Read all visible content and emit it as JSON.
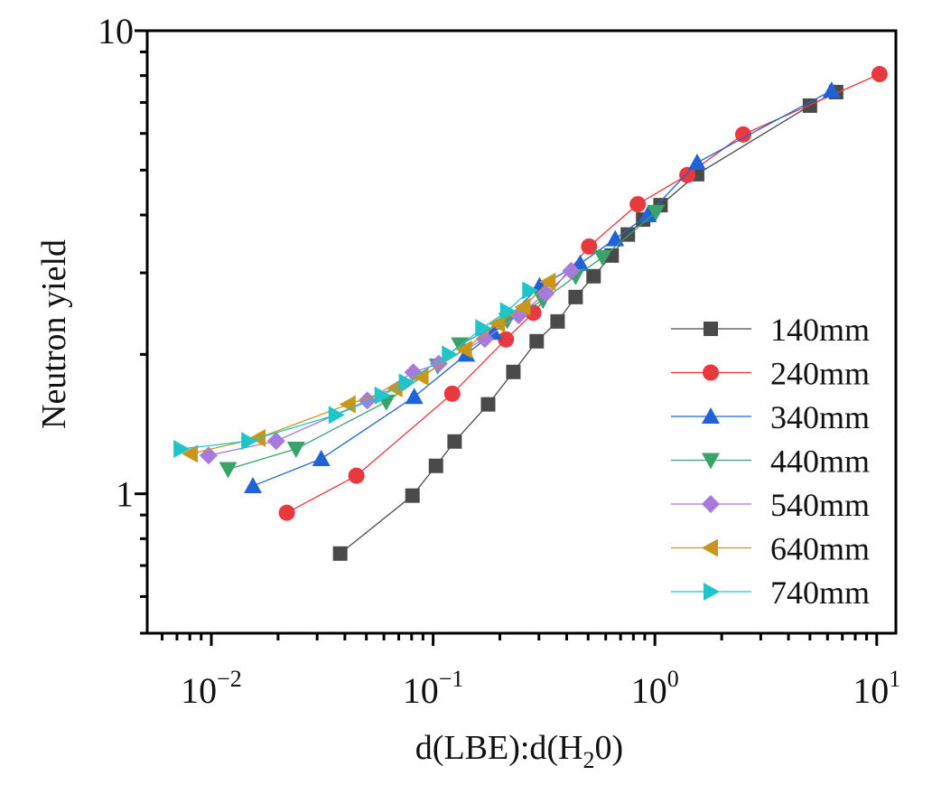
{
  "chart_data": {
    "type": "scatter",
    "title": "",
    "xlabel": "d(LBE):d(H2O)",
    "xlabel_parts": {
      "pre": "d(LBE):d(H",
      "sub": "2",
      "post": "0)"
    },
    "ylabel": "Neutron yield",
    "xscale": "log",
    "yscale": "log",
    "xlim": [
      0.00514,
      12.2
    ],
    "ylim": [
      0.5,
      10
    ],
    "grid": false,
    "legend_position": "bottom-right",
    "x_ticks": [
      {
        "value": 0.01,
        "base": "10",
        "exp": "−2"
      },
      {
        "value": 0.1,
        "base": "10",
        "exp": "−1"
      },
      {
        "value": 1,
        "base": "10",
        "exp": "0"
      },
      {
        "value": 10,
        "base": "10",
        "exp": "1"
      }
    ],
    "y_ticks": [
      {
        "value": 1,
        "label": "1"
      },
      {
        "value": 10,
        "label": "10"
      }
    ],
    "series": [
      {
        "name": "140mm",
        "marker": "square",
        "color": "#4a4a4a",
        "x": [
          0.0381,
          0.0807,
          0.103,
          0.125,
          0.177,
          0.23,
          0.293,
          0.364,
          0.439,
          0.529,
          0.638,
          0.755,
          0.885,
          1.06,
          1.55,
          5.0,
          6.56
        ],
        "y": [
          0.743,
          0.991,
          1.149,
          1.297,
          1.56,
          1.833,
          2.135,
          2.356,
          2.66,
          2.95,
          3.27,
          3.63,
          3.91,
          4.2,
          4.9,
          6.89,
          7.37
        ]
      },
      {
        "name": "240mm",
        "marker": "circle",
        "color": "#e8393f",
        "x": [
          0.0219,
          0.0451,
          0.122,
          0.213,
          0.283,
          0.505,
          0.837,
          1.4,
          2.5,
          10.3
        ],
        "y": [
          0.91,
          1.094,
          1.645,
          2.155,
          2.46,
          3.42,
          4.22,
          4.88,
          5.97,
          8.06
        ]
      },
      {
        "name": "340mm",
        "marker": "triangle-up",
        "color": "#1f63d6",
        "x": [
          0.0154,
          0.0313,
          0.0822,
          0.141,
          0.187,
          0.302,
          0.46,
          0.662,
          0.928,
          1.55,
          6.26
        ],
        "y": [
          1.04,
          1.19,
          1.62,
          2.0,
          2.23,
          2.81,
          3.14,
          3.55,
          4.0,
          5.19,
          7.43
        ]
      },
      {
        "name": "440mm",
        "marker": "triangle-down",
        "color": "#3aa36b",
        "x": [
          0.0119,
          0.0241,
          0.0615,
          0.105,
          0.132,
          0.216,
          0.313,
          0.439,
          0.581,
          1.01
        ],
        "y": [
          1.13,
          1.25,
          1.58,
          1.89,
          2.1,
          2.37,
          2.62,
          2.95,
          3.24,
          4.06
        ]
      },
      {
        "name": "540mm",
        "marker": "diamond",
        "color": "#a77bdc",
        "x": [
          0.00972,
          0.0196,
          0.0505,
          0.0814,
          0.106,
          0.171,
          0.243,
          0.322,
          0.419
        ],
        "y": [
          1.21,
          1.3,
          1.59,
          1.83,
          1.91,
          2.16,
          2.43,
          2.71,
          3.03
        ]
      },
      {
        "name": "640mm",
        "marker": "triangle-left",
        "color": "#c7961a",
        "x": [
          0.00807,
          0.0163,
          0.0415,
          0.0675,
          0.0885,
          0.139,
          0.196,
          0.255,
          0.331
        ],
        "y": [
          1.22,
          1.32,
          1.56,
          1.69,
          1.79,
          2.05,
          2.33,
          2.53,
          2.87
        ]
      },
      {
        "name": "740mm",
        "marker": "triangle-right",
        "color": "#1fc5c8",
        "x": [
          0.00728,
          0.0147,
          0.0364,
          0.0587,
          0.0755,
          0.118,
          0.167,
          0.216,
          0.272
        ],
        "y": [
          1.25,
          1.3,
          1.48,
          1.63,
          1.74,
          2.0,
          2.28,
          2.48,
          2.75
        ]
      }
    ]
  }
}
